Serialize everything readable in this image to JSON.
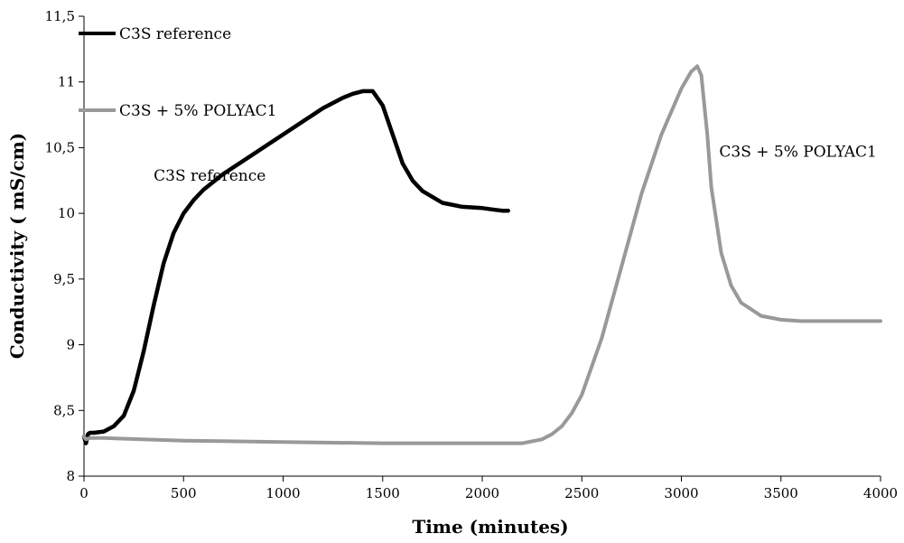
{
  "chart_data": {
    "type": "line",
    "xlabel": "Time (minutes)",
    "ylabel": "Conductivity ( mS/cm)",
    "xlim": [
      0,
      4000
    ],
    "ylim": [
      8,
      11.5
    ],
    "x_ticks": [
      0,
      500,
      1000,
      1500,
      2000,
      2500,
      3000,
      3500,
      4000
    ],
    "x_tick_labels": [
      "0",
      "500",
      "1000",
      "1500",
      "2000",
      "2500",
      "3000",
      "3500",
      "4000"
    ],
    "y_ticks": [
      8,
      8.5,
      9,
      9.5,
      10,
      10.5,
      11,
      11.5
    ],
    "y_tick_labels": [
      "8",
      "8,5",
      "9",
      "9,5",
      "10",
      "10,5",
      "11",
      "11,5"
    ],
    "grid": false,
    "legend_position": "top-left",
    "series": [
      {
        "name": "C3S reference",
        "color": "#000000",
        "x": [
          0,
          10,
          20,
          30,
          50,
          100,
          150,
          200,
          250,
          300,
          350,
          400,
          450,
          500,
          550,
          600,
          650,
          700,
          800,
          900,
          1000,
          1100,
          1200,
          1300,
          1350,
          1400,
          1450,
          1500,
          1550,
          1600,
          1650,
          1700,
          1800,
          1900,
          2000,
          2050,
          2100,
          2130
        ],
        "y": [
          8.3,
          8.25,
          8.32,
          8.33,
          8.33,
          8.34,
          8.38,
          8.46,
          8.65,
          8.95,
          9.3,
          9.62,
          9.85,
          10.0,
          10.1,
          10.18,
          10.24,
          10.3,
          10.4,
          10.5,
          10.6,
          10.7,
          10.8,
          10.88,
          10.91,
          10.93,
          10.93,
          10.82,
          10.6,
          10.38,
          10.25,
          10.17,
          10.08,
          10.05,
          10.04,
          10.03,
          10.02,
          10.02
        ]
      },
      {
        "name": "C3S  + 5% POLYAC1",
        "color": "#999999",
        "x": [
          0,
          10,
          30,
          100,
          500,
          1000,
          1500,
          2000,
          2200,
          2300,
          2350,
          2400,
          2450,
          2500,
          2600,
          2700,
          2800,
          2900,
          3000,
          3050,
          3080,
          3100,
          3130,
          3150,
          3200,
          3250,
          3300,
          3400,
          3500,
          3600,
          3700,
          3800,
          3900,
          4000
        ],
        "y": [
          8.3,
          8.28,
          8.29,
          8.29,
          8.27,
          8.26,
          8.25,
          8.25,
          8.25,
          8.28,
          8.32,
          8.38,
          8.48,
          8.62,
          9.05,
          9.6,
          10.15,
          10.6,
          10.95,
          11.08,
          11.12,
          11.05,
          10.6,
          10.2,
          9.7,
          9.45,
          9.32,
          9.22,
          9.19,
          9.18,
          9.18,
          9.18,
          9.18,
          9.18
        ]
      }
    ],
    "annotations": [
      {
        "text": "C3S reference",
        "x": 350,
        "y": 10.25
      },
      {
        "text": "C3S  + 5% POLYAC1",
        "x": 3190,
        "y": 10.43
      }
    ]
  }
}
